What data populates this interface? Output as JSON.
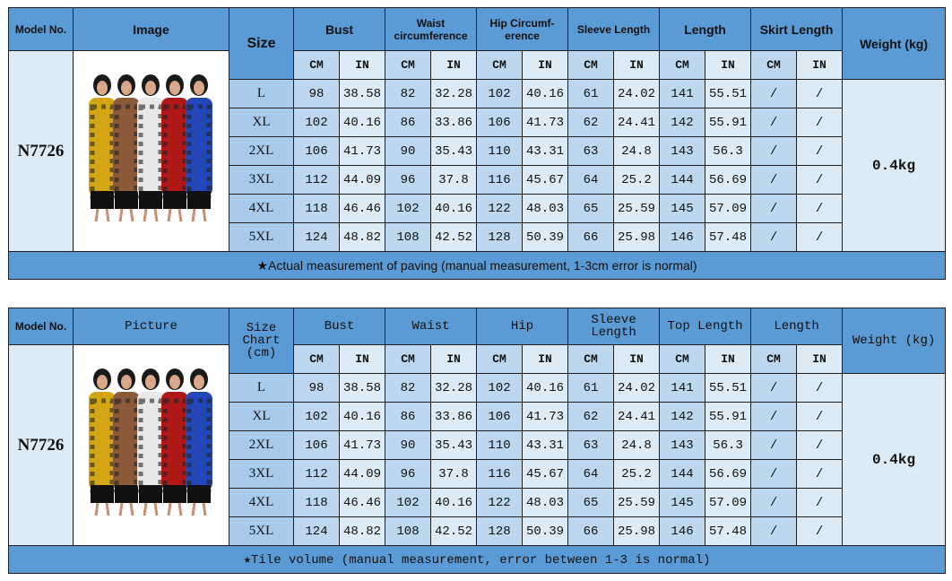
{
  "tables": [
    {
      "headers": {
        "model": "Model No.",
        "image": "Image",
        "size": "Size",
        "groups": [
          "Bust",
          "Waist circumference",
          "Hip Circumf-erence",
          "Sleeve Length",
          "Length",
          "Skirt Length"
        ],
        "weight": "Weight (kg)"
      },
      "units": [
        "CM",
        "IN"
      ],
      "model_no": "N7726",
      "weight": "0.4kg",
      "rows": [
        [
          "L",
          "98",
          "38.58",
          "82",
          "32.28",
          "102",
          "40.16",
          "61",
          "24.02",
          "141",
          "55.51",
          "/",
          "/"
        ],
        [
          "XL",
          "102",
          "40.16",
          "86",
          "33.86",
          "106",
          "41.73",
          "62",
          "24.41",
          "142",
          "55.91",
          "/",
          "/"
        ],
        [
          "2XL",
          "106",
          "41.73",
          "90",
          "35.43",
          "110",
          "43.31",
          "63",
          "24.8",
          "143",
          "56.3",
          "/",
          "/"
        ],
        [
          "3XL",
          "112",
          "44.09",
          "96",
          "37.8",
          "116",
          "45.67",
          "64",
          "25.2",
          "144",
          "56.69",
          "/",
          "/"
        ],
        [
          "4XL",
          "118",
          "46.46",
          "102",
          "40.16",
          "122",
          "48.03",
          "65",
          "25.59",
          "145",
          "57.09",
          "/",
          "/"
        ],
        [
          "5XL",
          "124",
          "48.82",
          "108",
          "42.52",
          "128",
          "50.39",
          "66",
          "25.98",
          "146",
          "57.48",
          "/",
          "/"
        ]
      ],
      "footer": "★Actual measurement of paving (manual measurement, 1-3cm error is normal)"
    },
    {
      "headers": {
        "model": "Model No.",
        "image": "Picture",
        "size": "Size Chart (cm)",
        "groups": [
          "Bust",
          "Waist",
          "Hip",
          "Sleeve Length",
          "Top Length",
          "Length"
        ],
        "weight": "Weight (kg)"
      },
      "units": [
        "CM",
        "IN"
      ],
      "model_no": "N7726",
      "weight": "0.4kg",
      "rows": [
        [
          "L",
          "98",
          "38.58",
          "82",
          "32.28",
          "102",
          "40.16",
          "61",
          "24.02",
          "141",
          "55.51",
          "/",
          "/"
        ],
        [
          "XL",
          "102",
          "40.16",
          "86",
          "33.86",
          "106",
          "41.73",
          "62",
          "24.41",
          "142",
          "55.91",
          "/",
          "/"
        ],
        [
          "2XL",
          "106",
          "41.73",
          "90",
          "35.43",
          "110",
          "43.31",
          "63",
          "24.8",
          "143",
          "56.3",
          "/",
          "/"
        ],
        [
          "3XL",
          "112",
          "44.09",
          "96",
          "37.8",
          "116",
          "45.67",
          "64",
          "25.2",
          "144",
          "56.69",
          "/",
          "/"
        ],
        [
          "4XL",
          "118",
          "46.46",
          "102",
          "40.16",
          "122",
          "48.03",
          "65",
          "25.59",
          "145",
          "57.09",
          "/",
          "/"
        ],
        [
          "5XL",
          "124",
          "48.82",
          "108",
          "42.52",
          "128",
          "50.39",
          "66",
          "25.98",
          "146",
          "57.48",
          "/",
          "/"
        ]
      ],
      "footer": "★Tile volume (manual measurement, error between 1-3 is normal)"
    }
  ],
  "colors": {
    "header": "#5b9bd5",
    "cm_cell": "#bdd7ee",
    "in_cell": "#ddebf7",
    "dress_colors": [
      "#d4a514",
      "#8a5a3a",
      "#e8e8e8",
      "#b01818",
      "#2447b8"
    ]
  }
}
